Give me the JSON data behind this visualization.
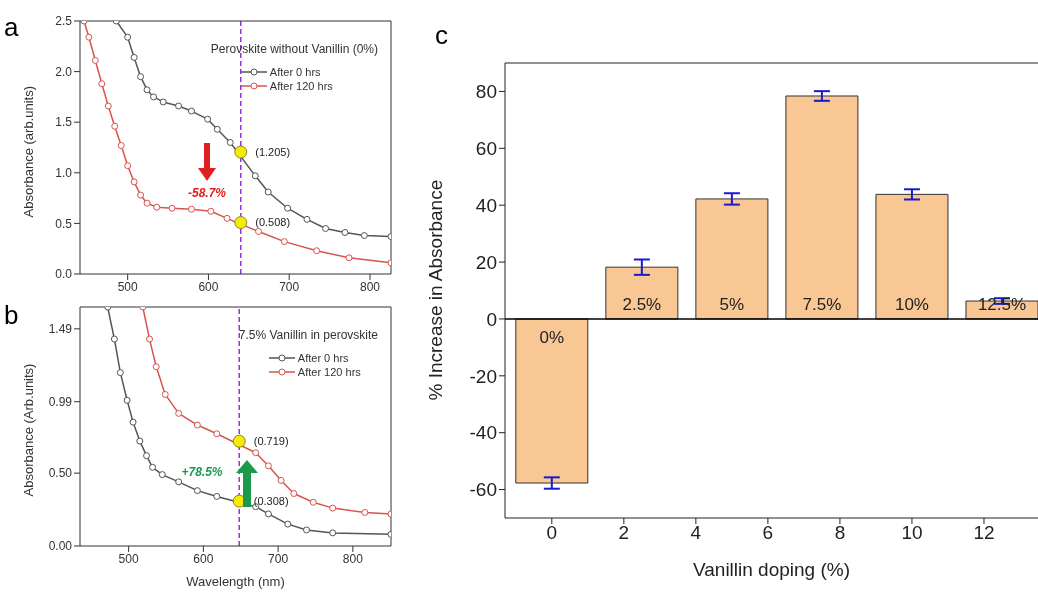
{
  "chart_data": [
    {
      "type": "line",
      "title": "a",
      "ylabel": "Absorbance (arb.units)",
      "xlim": [
        441,
        826
      ],
      "xticks": [
        500,
        600,
        700,
        800
      ],
      "ylim": [
        0,
        2.5
      ],
      "yticks": [
        {
          "value": 0,
          "label": "0.0"
        },
        0.5,
        {
          "value": 1,
          "label": "1.0"
        },
        1.5,
        {
          "value": 2,
          "label": "2.0"
        },
        2.5
      ],
      "grid": false,
      "legend": "top right",
      "marker": "circle",
      "line_style": "solid",
      "series": [
        {
          "name": "After 0 hrs",
          "color": "#555555",
          "x": [
            486,
            500,
            508,
            516,
            524,
            532,
            544,
            563,
            579,
            599,
            611,
            627,
            658,
            674,
            698,
            722,
            745,
            769,
            793,
            826
          ],
          "values": [
            2.5,
            2.34,
            2.14,
            1.95,
            1.82,
            1.75,
            1.7,
            1.66,
            1.61,
            1.53,
            1.43,
            1.3,
            0.97,
            0.81,
            0.65,
            0.54,
            0.45,
            0.41,
            0.38,
            0.37
          ]
        },
        {
          "name": "After 120 hrs",
          "color": "#d9534f",
          "x": [
            446,
            452,
            460,
            468,
            476,
            484,
            492,
            500,
            508,
            516,
            524,
            536,
            555,
            579,
            603,
            623,
            662,
            694,
            734,
            774,
            826
          ],
          "values": [
            2.5,
            2.34,
            2.11,
            1.88,
            1.66,
            1.46,
            1.27,
            1.07,
            0.91,
            0.78,
            0.7,
            0.66,
            0.65,
            0.64,
            0.62,
            0.55,
            0.42,
            0.32,
            0.23,
            0.16,
            0.11
          ]
        },
        {
          "type": "scatter",
          "color": "#f5ec00",
          "x": [
            640,
            640
          ],
          "values": [
            1.205,
            0.508
          ],
          "value_labels": [
            "(1.205)",
            "(0.508)"
          ]
        }
      ],
      "ref_lines": [
        {
          "axis": "x",
          "value": 640,
          "color": "#9b30d9",
          "line_style": "dashed"
        }
      ],
      "annotations": [
        "Perovskite without Vanillin (0%)",
        "-58.7%"
      ]
    },
    {
      "type": "line",
      "title": "b",
      "xlabel": "Wavelength (nm)",
      "ylabel": "Absorbance (Arb.units)",
      "xlim": [
        435,
        851
      ],
      "xticks": [
        500,
        600,
        700,
        800
      ],
      "ylim": [
        0,
        1.64
      ],
      "yticks": [
        {
          "value": 0,
          "label": "0.00"
        },
        {
          "value": 0.5,
          "label": "0.50"
        },
        0.99,
        1.49
      ],
      "grid": false,
      "legend": "top right",
      "marker": "circle",
      "line_style": "solid",
      "series": [
        {
          "name": "After 0 hrs",
          "color": "#555555",
          "x": [
            472,
            481,
            489,
            498,
            506,
            515,
            524,
            532,
            545,
            567,
            592,
            618,
            670,
            687,
            713,
            738,
            773,
            851
          ],
          "values": [
            1.64,
            1.42,
            1.19,
            1.0,
            0.85,
            0.72,
            0.62,
            0.54,
            0.49,
            0.44,
            0.38,
            0.34,
            0.27,
            0.22,
            0.15,
            0.11,
            0.09,
            0.08
          ]
        },
        {
          "name": "After 120 hrs",
          "color": "#d9534f",
          "x": [
            519,
            528,
            537,
            549,
            567,
            592,
            618,
            670,
            687,
            704,
            721,
            747,
            773,
            816,
            851
          ],
          "values": [
            1.64,
            1.42,
            1.23,
            1.04,
            0.91,
            0.83,
            0.77,
            0.64,
            0.55,
            0.45,
            0.36,
            0.3,
            0.26,
            0.23,
            0.22
          ]
        },
        {
          "type": "scatter",
          "color": "#f5ec00",
          "x": [
            648,
            648
          ],
          "values": [
            0.308,
            0.719
          ],
          "value_labels": [
            "(0.308)",
            "(0.719)"
          ]
        }
      ],
      "ref_lines": [
        {
          "axis": "x",
          "value": 648,
          "color": "#9b30d9",
          "line_style": "dashed"
        }
      ],
      "annotations": [
        "7.5% Vanillin in perovskite",
        "+78.5%"
      ]
    },
    {
      "type": "bar",
      "title": "c",
      "xlabel": "Vanillin doping (%)",
      "ylabel": "% Increase in Absorbance",
      "x": [
        0,
        2.5,
        5,
        7.5,
        10,
        12.5
      ],
      "values": [
        -57.7,
        18.2,
        42.2,
        78.4,
        43.8,
        6.3
      ],
      "errors": [
        2,
        2.7,
        2,
        1.7,
        1.8,
        1
      ],
      "color": "#f9c794",
      "xlim": [
        -1.3,
        13.5
      ],
      "xticks": [
        0,
        2,
        4,
        6,
        8,
        10,
        12
      ],
      "ylim": [
        -70,
        90
      ],
      "yticks": [
        -60,
        -40,
        -20,
        0,
        20,
        40,
        60,
        80
      ],
      "grid": false,
      "legend": false,
      "ref_lines": [
        {
          "axis": "y",
          "value": 0,
          "color": "#000000"
        }
      ],
      "annotations": [
        "0%",
        "2.5%",
        "5%",
        "7.5%",
        "10%",
        "12.5%"
      ]
    }
  ]
}
